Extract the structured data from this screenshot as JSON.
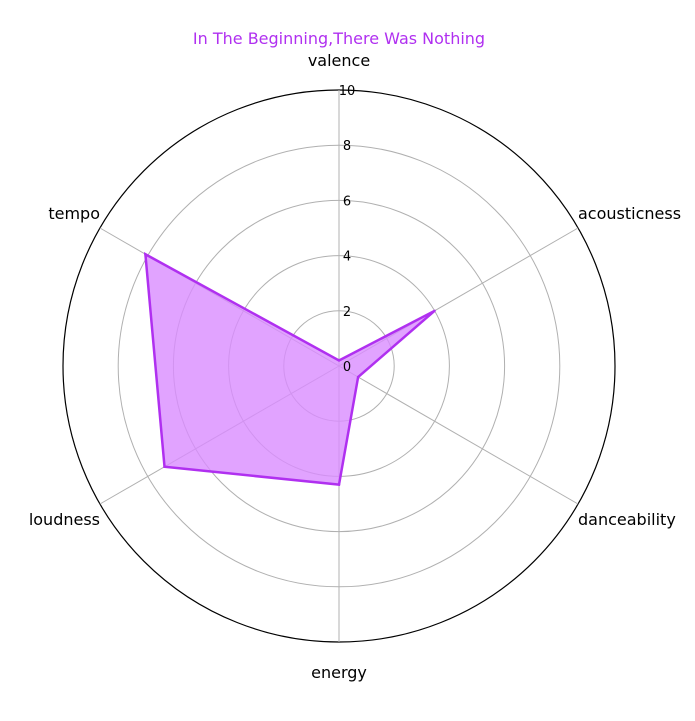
{
  "chart_data": {
    "type": "radar",
    "title": "In The Beginning,There Was Nothing",
    "categories": [
      "valence",
      "acousticness",
      "danceability",
      "energy",
      "loudness",
      "tempo"
    ],
    "series": [
      {
        "values": [
          0.2,
          4.0,
          0.8,
          4.3,
          7.3,
          8.1
        ]
      }
    ],
    "r_ticks": [
      "0",
      "2",
      "4",
      "6",
      "8",
      "10"
    ],
    "r_range": [
      0,
      10
    ],
    "grid": true,
    "colors": {
      "series_line": "#b030f0",
      "series_fill": "#d98cff",
      "title": "#b030f0",
      "grid": "#b0b0b0",
      "outer_frame": "#000000"
    }
  }
}
